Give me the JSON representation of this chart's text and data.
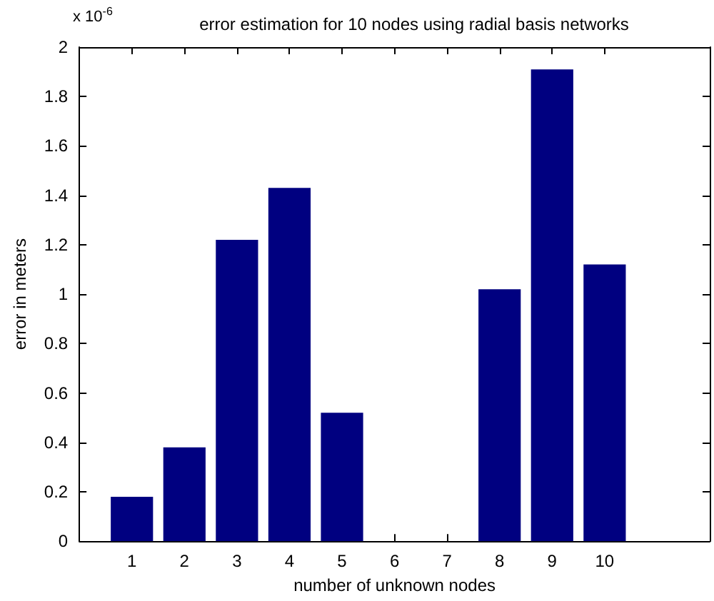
{
  "chart_data": {
    "type": "bar",
    "title": "error estimation for 10 nodes using radial basis networks",
    "xlabel": "number of unknown nodes",
    "ylabel": "error in meters",
    "annotations": [
      "x 10$^{-6}$"
    ],
    "x": [
      1,
      2,
      3,
      4,
      5,
      6,
      7,
      8,
      9,
      10
    ],
    "values": [
      0.18,
      0.38,
      1.22,
      1.43,
      0.52,
      0,
      0,
      1.02,
      1.91,
      1.12
    ],
    "color": "#000080",
    "xlim": [
      0,
      12
    ],
    "xticks": [
      1,
      2,
      3,
      4,
      5,
      6,
      7,
      8,
      9,
      10
    ],
    "ylim": [
      0,
      2
    ],
    "yticks": [
      0,
      0.2,
      0.4,
      0.6,
      0.8,
      1,
      1.2,
      1.4,
      1.6,
      1.8,
      2
    ],
    "grid": false
  }
}
